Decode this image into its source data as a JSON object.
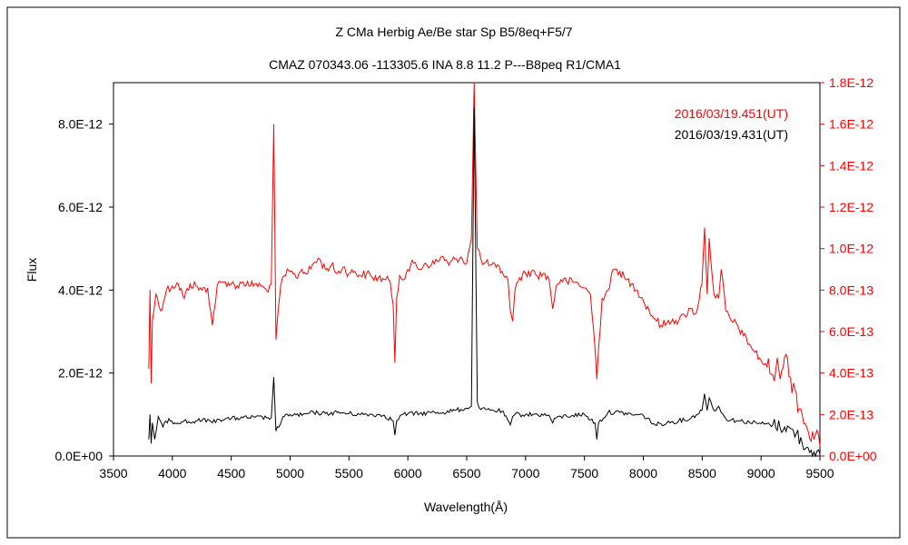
{
  "chart_data": {
    "type": "line",
    "title": "Z CMa    Herbig Ae/Be star    Sp B5/8eq+F5/7",
    "subtitle": "CMAZ 070343.06 -113305.6 INA 8.8 11.2 P---B8peq R1/CMA1",
    "xlabel": "Wavelength(Å)",
    "ylabel": "Flux",
    "xlim": [
      3500,
      9500
    ],
    "ylim_left": [
      0,
      9e-12
    ],
    "ylim_right": [
      0,
      1.8e-12
    ],
    "x_ticks": [
      "3500",
      "4000",
      "4500",
      "5000",
      "5500",
      "6000",
      "6500",
      "7000",
      "7500",
      "8000",
      "8500",
      "9000",
      "9500"
    ],
    "y_ticks_left": [
      "0.0E+00",
      "2.0E-12",
      "4.0E-12",
      "6.0E-12",
      "8.0E-12"
    ],
    "y_ticks_right": [
      "0.0E+00",
      "2.0E-13",
      "4.0E-13",
      "6.0E-13",
      "8.0E-13",
      "1.0E-12",
      "1.2E-12",
      "1.4E-12",
      "1.6E-12",
      "1.8E-12"
    ],
    "legend_position": "top-right",
    "grid": false,
    "series": [
      {
        "name": "2016/03/19.451(UT)",
        "axis": "right",
        "color": "#ff0000",
        "x": [
          3800,
          3810,
          3820,
          3830,
          3860,
          3900,
          3950,
          4000,
          4050,
          4101,
          4150,
          4200,
          4250,
          4300,
          4340,
          4380,
          4450,
          4500,
          4550,
          4600,
          4650,
          4700,
          4750,
          4800,
          4840,
          4861,
          4880,
          4920,
          4950,
          5000,
          5050,
          5100,
          5150,
          5200,
          5250,
          5300,
          5350,
          5400,
          5450,
          5500,
          5550,
          5600,
          5650,
          5700,
          5750,
          5800,
          5850,
          5875,
          5890,
          5905,
          5930,
          5950,
          6000,
          6050,
          6100,
          6150,
          6200,
          6250,
          6300,
          6350,
          6400,
          6450,
          6500,
          6540,
          6563,
          6590,
          6620,
          6650,
          6700,
          6750,
          6800,
          6850,
          6870,
          6890,
          6910,
          6950,
          7000,
          7050,
          7100,
          7150,
          7200,
          7230,
          7260,
          7300,
          7350,
          7400,
          7450,
          7500,
          7550,
          7590,
          7605,
          7620,
          7650,
          7700,
          7750,
          7800,
          7850,
          7900,
          7950,
          8000,
          8050,
          8100,
          8150,
          8200,
          8250,
          8300,
          8350,
          8400,
          8450,
          8498,
          8520,
          8542,
          8560,
          8600,
          8640,
          8662,
          8700,
          8750,
          8800,
          8850,
          8900,
          8950,
          9000,
          9050,
          9100,
          9150,
          9200,
          9250,
          9300,
          9350,
          9400,
          9450,
          9500
        ],
        "y": [
          4.2e-13,
          8e-13,
          3.5e-13,
          6.5e-13,
          7.8e-13,
          7e-13,
          8e-13,
          8.2e-13,
          8.3e-13,
          7.6e-13,
          8.3e-13,
          8.2e-13,
          8e-13,
          8.1e-13,
          6.3e-13,
          8.2e-13,
          8.4e-13,
          8.3e-13,
          8.2e-13,
          8.4e-13,
          8.2e-13,
          8.3e-13,
          8.2e-13,
          8e-13,
          8.3e-13,
          1.6e-12,
          5.6e-13,
          8.2e-13,
          8.7e-13,
          8.9e-13,
          8.6e-13,
          9e-13,
          8.8e-13,
          9.3e-13,
          9.5e-13,
          9e-13,
          9.2e-13,
          8.8e-13,
          9.1e-13,
          8.8e-13,
          8.9e-13,
          8.7e-13,
          8.8e-13,
          8.6e-13,
          8.6e-13,
          8.5e-13,
          8.4e-13,
          7.3e-13,
          4.5e-13,
          7.6e-13,
          8.7e-13,
          8.5e-13,
          9e-13,
          9.3e-13,
          9e-13,
          9.3e-13,
          9.2e-13,
          9.4e-13,
          9.6e-13,
          9.2e-13,
          9.5e-13,
          9.6e-13,
          9.3e-13,
          1.05e-12,
          1.8e-12,
          1e-12,
          9.5e-13,
          9.3e-13,
          9.2e-13,
          9.1e-13,
          8.9e-13,
          8.5e-13,
          7e-13,
          6.5e-13,
          8e-13,
          8.6e-13,
          8.8e-13,
          8.9e-13,
          8.7e-13,
          8.8e-13,
          8.5e-13,
          7.1e-13,
          8.2e-13,
          8.5e-13,
          8.4e-13,
          8.4e-13,
          8.3e-13,
          8.1e-13,
          7.8e-13,
          5.2e-13,
          3.7e-13,
          5.2e-13,
          7.6e-13,
          8e-13,
          9e-13,
          8.9e-13,
          8.5e-13,
          8.3e-13,
          8e-13,
          7.5e-13,
          7e-13,
          6.6e-13,
          6.3e-13,
          6.4e-13,
          6.6e-13,
          6.5e-13,
          6.8e-13,
          7.1e-13,
          6.9e-13,
          8.3e-13,
          1.1e-12,
          7.8e-13,
          1.05e-12,
          7.8e-13,
          7.6e-13,
          9e-13,
          7e-13,
          6.5e-13,
          6.3e-13,
          5.8e-13,
          5.4e-13,
          5e-13,
          4.6e-13,
          4.3e-13,
          3.9e-13,
          4.2e-13,
          4.8e-13,
          3.8e-13,
          3e-13,
          2e-13,
          1.2e-13,
          8e-14,
          5e-14
        ]
      },
      {
        "name": "2016/03/19.431(UT)",
        "axis": "left",
        "color": "#000000",
        "x": [
          3800,
          3810,
          3820,
          3830,
          3850,
          3880,
          3920,
          3970,
          4020,
          4101,
          4150,
          4200,
          4250,
          4300,
          4340,
          4380,
          4450,
          4500,
          4600,
          4700,
          4800,
          4840,
          4861,
          4880,
          4950,
          5000,
          5100,
          5200,
          5300,
          5400,
          5500,
          5600,
          5700,
          5800,
          5875,
          5890,
          5905,
          5950,
          6000,
          6100,
          6200,
          6300,
          6400,
          6500,
          6540,
          6563,
          6590,
          6620,
          6700,
          6800,
          6870,
          6890,
          6910,
          7000,
          7100,
          7200,
          7230,
          7260,
          7300,
          7400,
          7500,
          7590,
          7605,
          7620,
          7700,
          7800,
          7900,
          8000,
          8100,
          8200,
          8300,
          8400,
          8498,
          8520,
          8542,
          8560,
          8600,
          8640,
          8662,
          8700,
          8800,
          8900,
          9000,
          9100,
          9200,
          9300,
          9350,
          9400,
          9450,
          9500
        ],
        "y": [
          4e-13,
          1e-12,
          3e-13,
          8e-13,
          4e-13,
          9.5e-13,
          7e-13,
          9e-13,
          8e-13,
          8.5e-13,
          8e-13,
          8.5e-13,
          8.5e-13,
          8.8e-13,
          8e-13,
          8.8e-13,
          9e-13,
          9e-13,
          9.2e-13,
          9.3e-13,
          9.2e-13,
          9.3e-13,
          1.9e-12,
          6e-13,
          9.5e-13,
          1e-12,
          9.8e-13,
          1.05e-12,
          1.02e-12,
          1.05e-12,
          1.02e-12,
          1e-12,
          1e-12,
          9.8e-13,
          8.5e-13,
          5e-13,
          8.5e-13,
          1e-12,
          1.02e-12,
          1.02e-12,
          1.05e-12,
          1.05e-12,
          1.1e-12,
          1.15e-12,
          1.2e-12,
          8.4e-12,
          1.3e-12,
          1.12e-12,
          1.1e-12,
          1.08e-12,
          7.5e-13,
          9.5e-13,
          1e-12,
          1e-12,
          1e-12,
          9.8e-13,
          8e-13,
          9.2e-13,
          9.5e-13,
          9.8e-13,
          1e-12,
          8e-13,
          4e-13,
          8e-13,
          1.05e-12,
          1.05e-12,
          1e-12,
          9.8e-13,
          7.5e-13,
          8e-13,
          8.5e-13,
          9e-13,
          1.1e-12,
          1.5e-12,
          1.1e-12,
          1.4e-12,
          1.1e-12,
          1.2e-12,
          1.05e-12,
          9e-13,
          8.5e-13,
          8.2e-13,
          7.8e-13,
          7.5e-13,
          7e-13,
          5.5e-13,
          3e-13,
          2e-13,
          1e-13,
          5e-14
        ]
      }
    ]
  }
}
